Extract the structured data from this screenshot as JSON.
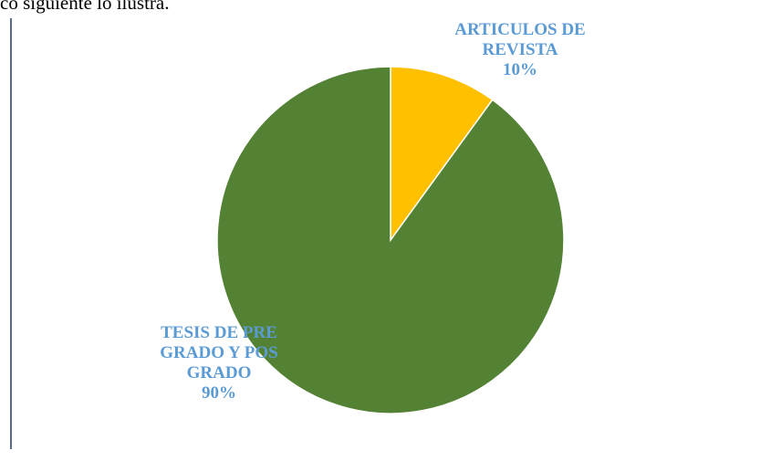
{
  "document_text": "co siguiente lo ilustra.",
  "chart_data": {
    "type": "pie",
    "categories": [
      "ARTICULOS DE REVISTA",
      "TESIS DE PRE GRADO Y POS GRADO"
    ],
    "values": [
      10,
      90
    ],
    "value_labels": [
      "10%",
      "90%"
    ],
    "colors": [
      "#FFC000",
      "#548235"
    ]
  }
}
